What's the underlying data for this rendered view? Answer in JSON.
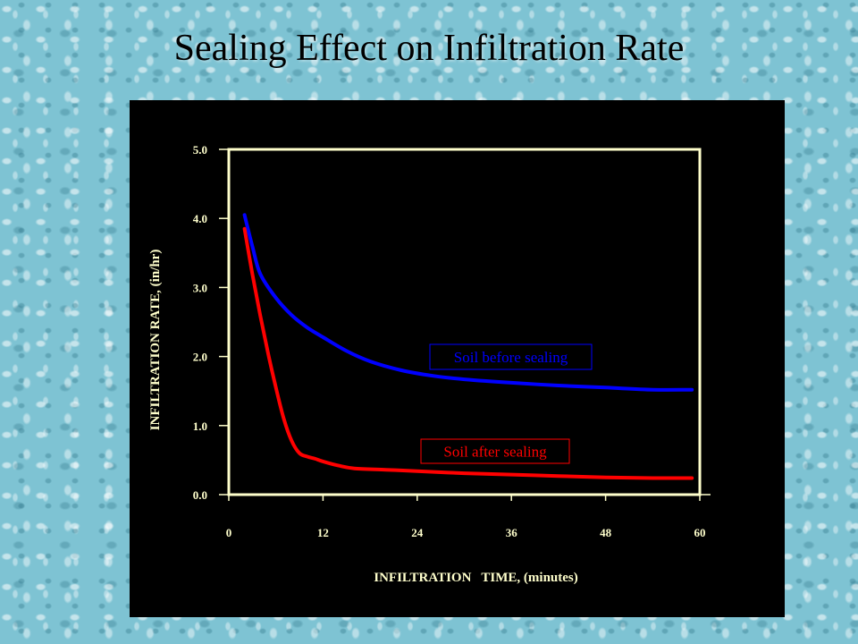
{
  "slide": {
    "title": "Sealing Effect on Infiltration Rate"
  },
  "colors": {
    "background": "#7ec3d3",
    "panel": "#000000",
    "axis": "#ffffcc",
    "before_sealing": "#0000ff",
    "after_sealing": "#ff0000"
  },
  "chart_data": {
    "type": "line",
    "title": "",
    "xlabel": "INFILTRATION   TIME, (minutes)",
    "ylabel": "INFILTRATION RATE, (in/hr)",
    "xlim": [
      0,
      60
    ],
    "ylim": [
      0,
      5
    ],
    "x_ticks": [
      "0",
      "12",
      "24",
      "36",
      "48",
      "60"
    ],
    "y_ticks": [
      "0.0",
      "1.0",
      "2.0",
      "3.0",
      "4.0",
      "5.0"
    ],
    "grid": false,
    "legend": "inline labels",
    "series": [
      {
        "name": "Soil before sealing",
        "color": "#0000ff",
        "x": [
          2,
          3,
          4,
          6,
          8,
          10,
          12,
          15,
          18,
          22,
          26,
          30,
          36,
          42,
          48,
          54,
          59
        ],
        "y": [
          4.05,
          3.6,
          3.2,
          2.85,
          2.6,
          2.42,
          2.28,
          2.08,
          1.93,
          1.8,
          1.72,
          1.67,
          1.62,
          1.58,
          1.55,
          1.52,
          1.52
        ]
      },
      {
        "name": "Soil after sealing",
        "color": "#ff0000",
        "x": [
          2,
          3,
          4,
          5,
          6,
          7,
          8,
          9,
          10,
          11,
          12,
          14,
          16,
          20,
          24,
          30,
          36,
          42,
          48,
          54,
          59
        ],
        "y": [
          3.85,
          3.2,
          2.6,
          2.05,
          1.55,
          1.1,
          0.78,
          0.6,
          0.55,
          0.52,
          0.48,
          0.42,
          0.38,
          0.36,
          0.34,
          0.31,
          0.29,
          0.27,
          0.25,
          0.24,
          0.24
        ]
      }
    ],
    "annotations": [
      {
        "text": "Soil before sealing",
        "series": 0
      },
      {
        "text": "Soil after sealing",
        "series": 1
      }
    ]
  }
}
